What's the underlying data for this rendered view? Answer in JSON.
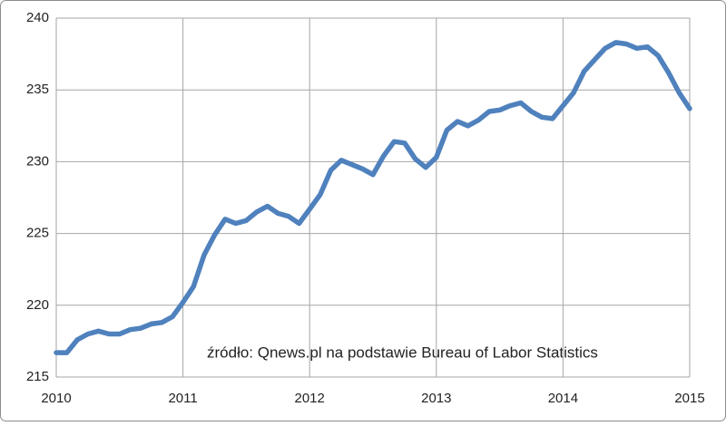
{
  "chart_data": {
    "type": "line",
    "annotation": "źródło: Qnews.pl na podstawie Bureau of Labor Statistics",
    "x": [
      2010,
      2010.083,
      2010.167,
      2010.25,
      2010.333,
      2010.417,
      2010.5,
      2010.583,
      2010.667,
      2010.75,
      2010.833,
      2010.917,
      2011,
      2011.083,
      2011.167,
      2011.25,
      2011.333,
      2011.417,
      2011.5,
      2011.583,
      2011.667,
      2011.75,
      2011.833,
      2011.917,
      2012,
      2012.083,
      2012.167,
      2012.25,
      2012.333,
      2012.417,
      2012.5,
      2012.583,
      2012.667,
      2012.75,
      2012.833,
      2012.917,
      2013,
      2013.083,
      2013.167,
      2013.25,
      2013.333,
      2013.417,
      2013.5,
      2013.583,
      2013.667,
      2013.75,
      2013.833,
      2013.917,
      2014,
      2014.083,
      2014.167,
      2014.25,
      2014.333,
      2014.417,
      2014.5,
      2014.583,
      2014.667,
      2014.75,
      2014.833,
      2014.917,
      2015
    ],
    "values": [
      216.7,
      216.7,
      217.6,
      218.0,
      218.2,
      218.0,
      218.0,
      218.3,
      218.4,
      218.7,
      218.8,
      219.2,
      220.2,
      221.3,
      223.5,
      224.9,
      226.0,
      225.7,
      225.9,
      226.5,
      226.9,
      226.4,
      226.2,
      225.7,
      226.7,
      227.7,
      229.4,
      230.1,
      229.8,
      229.5,
      229.1,
      230.4,
      231.4,
      231.3,
      230.2,
      229.6,
      230.3,
      232.2,
      232.8,
      232.5,
      232.9,
      233.5,
      233.6,
      233.9,
      234.1,
      233.5,
      233.1,
      233.0,
      233.9,
      234.8,
      236.3,
      237.1,
      237.9,
      238.3,
      238.2,
      237.9,
      238.0,
      237.4,
      236.2,
      234.8,
      233.7
    ],
    "color": "#4f81bd",
    "xlim": [
      2010,
      2015
    ],
    "xticks": [
      2010,
      2011,
      2012,
      2013,
      2014,
      2015
    ],
    "ylim": [
      215,
      240
    ],
    "yticks": [
      215,
      220,
      225,
      230,
      235,
      240
    ],
    "grid": true
  }
}
